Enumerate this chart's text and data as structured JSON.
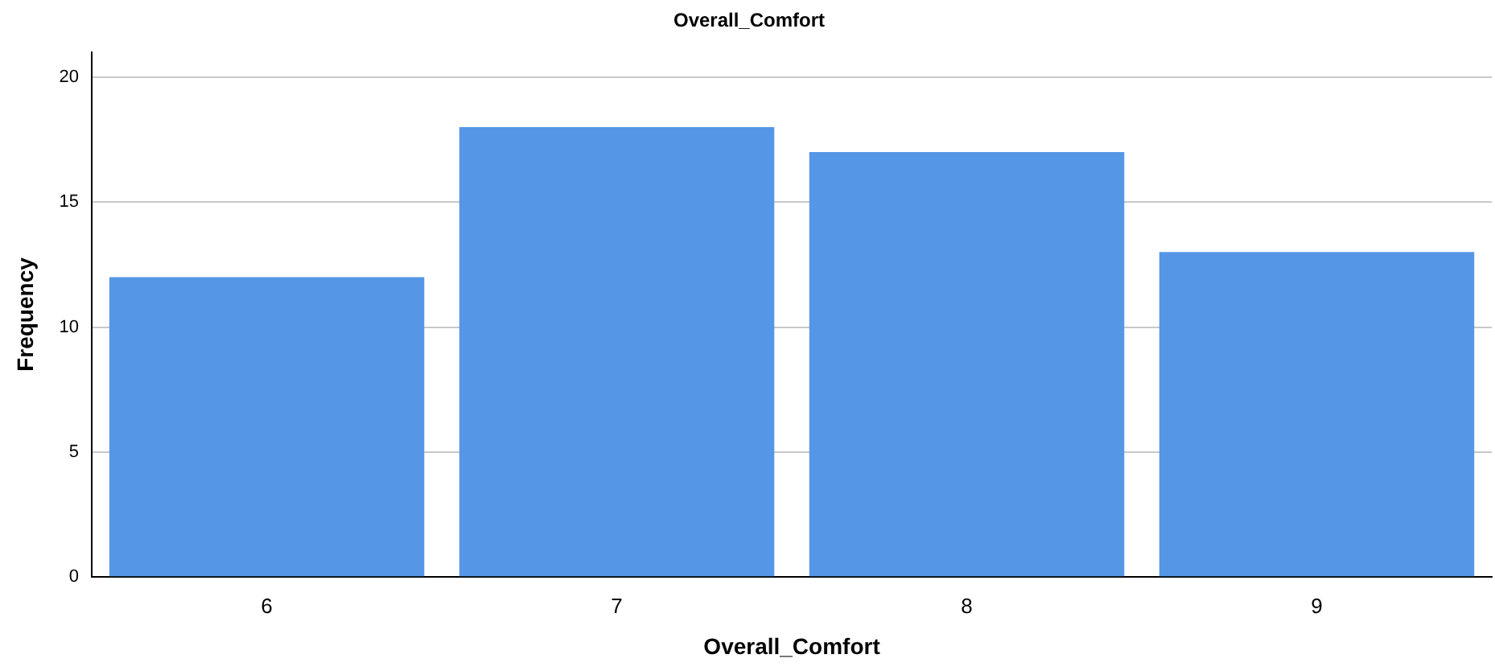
{
  "chart_data": {
    "type": "bar",
    "title": "Overall_Comfort",
    "xlabel": "Overall_Comfort",
    "ylabel": "Frequency",
    "categories": [
      "6",
      "7",
      "8",
      "9"
    ],
    "values": [
      12,
      18,
      17,
      13
    ],
    "color": "#5596e6",
    "ylim": [
      0,
      21
    ],
    "yticks": [
      0,
      5,
      10,
      15,
      20
    ],
    "grid": "y"
  }
}
